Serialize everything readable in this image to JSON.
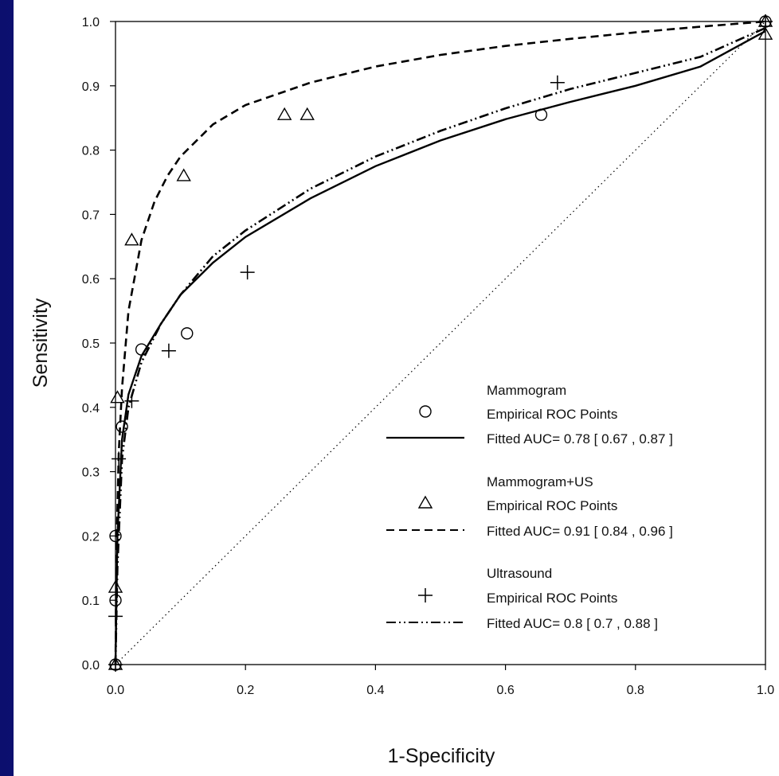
{
  "chart_data": {
    "type": "line",
    "title": "",
    "xlabel": "1-Specificity",
    "ylabel": "Sensitivity",
    "xlim": [
      0,
      1
    ],
    "ylim": [
      0,
      1
    ],
    "x_ticks": [
      "0.0",
      "0.2",
      "0.4",
      "0.6",
      "0.8",
      "1.0"
    ],
    "y_ticks": [
      "0.0",
      "0.1",
      "0.2",
      "0.3",
      "0.4",
      "0.5",
      "0.6",
      "0.7",
      "0.8",
      "0.9",
      "1.0"
    ],
    "grid": false,
    "legend_position": "bottom-right",
    "reference_line": {
      "style": "dotted",
      "points": [
        [
          0,
          0
        ],
        [
          1,
          1
        ]
      ]
    },
    "series": [
      {
        "name": "Mammogram",
        "marker": "circle",
        "line_style": "solid",
        "empirical_label": "Empirical ROC Points",
        "fitted_label": "Fitted AUC= 0.78 [ 0.67 , 0.87 ]",
        "empirical_points": [
          [
            0,
            0
          ],
          [
            0,
            0.1
          ],
          [
            0,
            0.2
          ],
          [
            0.01,
            0.37
          ],
          [
            0.04,
            0.49
          ],
          [
            0.11,
            0.515
          ],
          [
            0.655,
            0.855
          ],
          [
            1,
            1
          ]
        ],
        "fitted_curve": [
          [
            0,
            0
          ],
          [
            0.003,
            0.2
          ],
          [
            0.01,
            0.35
          ],
          [
            0.02,
            0.42
          ],
          [
            0.04,
            0.48
          ],
          [
            0.07,
            0.53
          ],
          [
            0.1,
            0.575
          ],
          [
            0.15,
            0.625
          ],
          [
            0.2,
            0.665
          ],
          [
            0.3,
            0.725
          ],
          [
            0.4,
            0.775
          ],
          [
            0.5,
            0.815
          ],
          [
            0.6,
            0.848
          ],
          [
            0.7,
            0.875
          ],
          [
            0.8,
            0.9
          ],
          [
            0.9,
            0.93
          ],
          [
            1,
            0.985
          ]
        ]
      },
      {
        "name": "Mammogram+US",
        "marker": "triangle",
        "line_style": "dashed",
        "empirical_label": "Empirical ROC Points",
        "fitted_label": "Fitted AUC= 0.91 [ 0.84 , 0.96 ]",
        "empirical_points": [
          [
            0,
            0
          ],
          [
            0,
            0.12
          ],
          [
            0.003,
            0.415
          ],
          [
            0.025,
            0.66
          ],
          [
            0.105,
            0.76
          ],
          [
            0.26,
            0.855
          ],
          [
            0.295,
            0.855
          ],
          [
            1,
            0.98
          ],
          [
            1,
            1
          ]
        ],
        "fitted_curve": [
          [
            0,
            0
          ],
          [
            0.002,
            0.2
          ],
          [
            0.005,
            0.33
          ],
          [
            0.01,
            0.43
          ],
          [
            0.02,
            0.55
          ],
          [
            0.04,
            0.66
          ],
          [
            0.06,
            0.72
          ],
          [
            0.08,
            0.76
          ],
          [
            0.1,
            0.79
          ],
          [
            0.15,
            0.84
          ],
          [
            0.2,
            0.87
          ],
          [
            0.3,
            0.905
          ],
          [
            0.4,
            0.93
          ],
          [
            0.5,
            0.948
          ],
          [
            0.6,
            0.962
          ],
          [
            0.7,
            0.973
          ],
          [
            0.8,
            0.983
          ],
          [
            0.9,
            0.992
          ],
          [
            1,
            1
          ]
        ]
      },
      {
        "name": "Ultrasound",
        "marker": "plus",
        "line_style": "dash-dot-dot",
        "empirical_label": "Empirical ROC Points",
        "fitted_label": "Fitted AUC= 0.8 [ 0.7 , 0.88 ]",
        "empirical_points": [
          [
            0,
            0
          ],
          [
            0,
            0.075
          ],
          [
            0.005,
            0.32
          ],
          [
            0.025,
            0.41
          ],
          [
            0.082,
            0.488
          ],
          [
            0.203,
            0.61
          ],
          [
            0.68,
            0.905
          ],
          [
            1,
            1
          ]
        ],
        "fitted_curve": [
          [
            0,
            0
          ],
          [
            0.003,
            0.15
          ],
          [
            0.01,
            0.32
          ],
          [
            0.02,
            0.4
          ],
          [
            0.04,
            0.47
          ],
          [
            0.07,
            0.53
          ],
          [
            0.1,
            0.575
          ],
          [
            0.15,
            0.635
          ],
          [
            0.2,
            0.675
          ],
          [
            0.3,
            0.74
          ],
          [
            0.4,
            0.79
          ],
          [
            0.5,
            0.83
          ],
          [
            0.6,
            0.865
          ],
          [
            0.7,
            0.895
          ],
          [
            0.8,
            0.92
          ],
          [
            0.9,
            0.945
          ],
          [
            1,
            0.99
          ]
        ]
      }
    ]
  }
}
